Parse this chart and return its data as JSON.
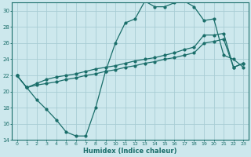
{
  "xlabel": "Humidex (Indice chaleur)",
  "bg_color": "#cde8ed",
  "grid_color": "#a8cdd4",
  "line_color": "#1a6e6a",
  "xlim": [
    -0.5,
    23.5
  ],
  "ylim": [
    14,
    31
  ],
  "xticks": [
    0,
    1,
    2,
    3,
    4,
    5,
    6,
    7,
    8,
    9,
    10,
    11,
    12,
    13,
    14,
    15,
    16,
    17,
    18,
    19,
    20,
    21,
    22,
    23
  ],
  "yticks": [
    14,
    16,
    18,
    20,
    22,
    24,
    26,
    28,
    30
  ],
  "curve1_x": [
    0,
    1,
    2,
    3,
    4,
    5,
    6,
    7,
    8,
    9,
    10,
    11,
    12,
    13,
    14,
    15,
    16,
    17,
    18,
    19,
    20,
    21,
    22,
    23
  ],
  "curve1_y": [
    22,
    20.5,
    19.0,
    17.8,
    16.5,
    15.0,
    14.5,
    14.5,
    18.0,
    22.5,
    26.0,
    28.5,
    29.0,
    31.2,
    30.5,
    30.5,
    31.0,
    31.2,
    30.5,
    28.8,
    29.0,
    24.5,
    24.0,
    23.0
  ],
  "curve2_x": [
    0,
    1,
    2,
    3,
    4,
    5,
    6,
    7,
    8,
    9,
    10,
    11,
    12,
    13,
    14,
    15,
    16,
    17,
    18,
    19,
    20,
    21,
    22,
    23
  ],
  "curve2_y": [
    22.0,
    20.5,
    21.0,
    21.5,
    21.8,
    22.0,
    22.2,
    22.5,
    22.8,
    23.0,
    23.2,
    23.5,
    23.8,
    24.0,
    24.2,
    24.5,
    24.8,
    25.2,
    25.5,
    27.0,
    27.0,
    27.2,
    23.0,
    23.5
  ],
  "curve3_x": [
    0,
    1,
    2,
    3,
    4,
    5,
    6,
    7,
    8,
    9,
    10,
    11,
    12,
    13,
    14,
    15,
    16,
    17,
    18,
    19,
    20,
    21,
    22,
    23
  ],
  "curve3_y": [
    22.0,
    20.5,
    20.8,
    21.0,
    21.2,
    21.5,
    21.7,
    22.0,
    22.2,
    22.5,
    22.7,
    23.0,
    23.2,
    23.5,
    23.7,
    24.0,
    24.2,
    24.5,
    24.8,
    26.0,
    26.2,
    26.5,
    23.0,
    23.5
  ]
}
